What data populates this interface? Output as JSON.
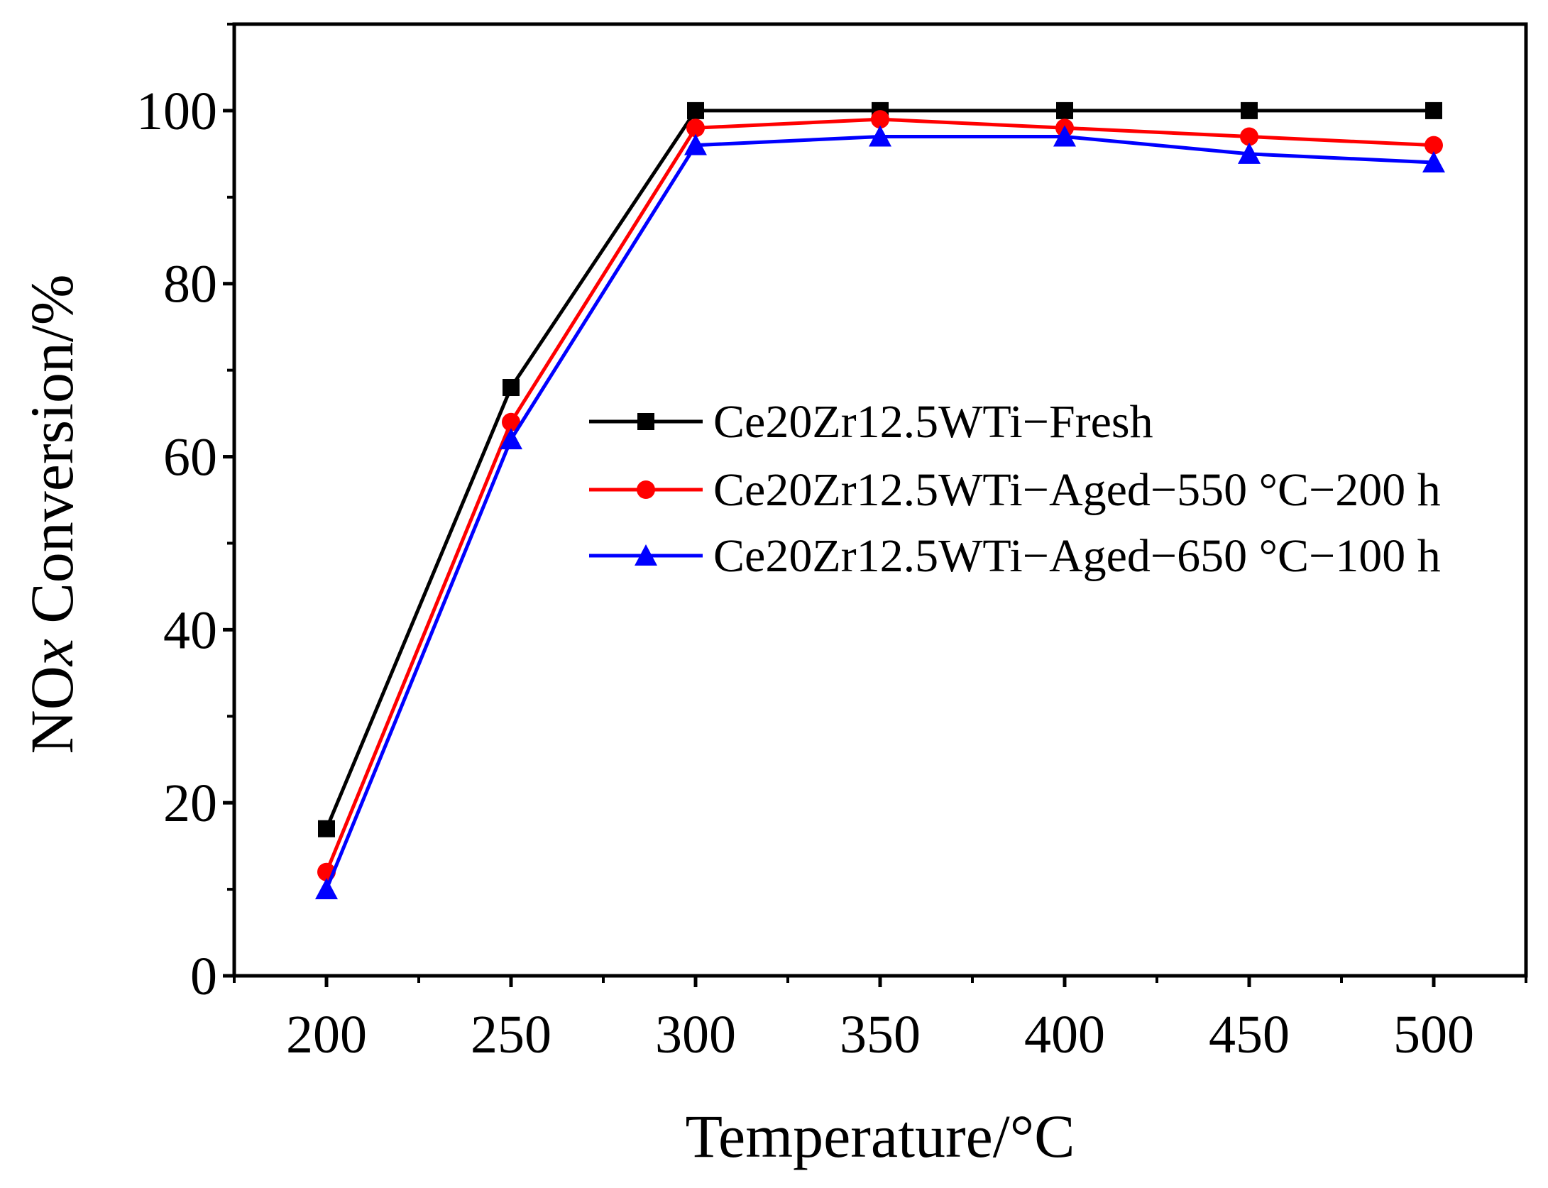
{
  "chart_data": {
    "type": "line",
    "xlabel": "Temperature/°C",
    "ylabel_parts": [
      "NO",
      "x",
      " Conversion/%"
    ],
    "x": [
      200,
      250,
      300,
      350,
      400,
      450,
      500
    ],
    "xlim": [
      175,
      525
    ],
    "ylim": [
      0,
      110
    ],
    "xticks": [
      200,
      250,
      300,
      350,
      400,
      450,
      500
    ],
    "yticks": [
      0,
      20,
      40,
      60,
      80,
      100
    ],
    "grid": false,
    "legend_position": "center-right",
    "series": [
      {
        "name": "Ce20Zr12.5WTi−Fresh",
        "color": "#000000",
        "marker": "square",
        "values": [
          17,
          68,
          100,
          100,
          100,
          100,
          100
        ]
      },
      {
        "name": "Ce20Zr12.5WTi−Aged−550 °C−200 h",
        "color": "#ff0000",
        "marker": "circle",
        "values": [
          12,
          64,
          98,
          99,
          98,
          97,
          96
        ]
      },
      {
        "name": "Ce20Zr12.5WTi−Aged−650 °C−100 h",
        "color": "#0000ff",
        "marker": "triangle",
        "values": [
          10,
          62,
          96,
          97,
          97,
          95,
          94
        ]
      }
    ]
  }
}
